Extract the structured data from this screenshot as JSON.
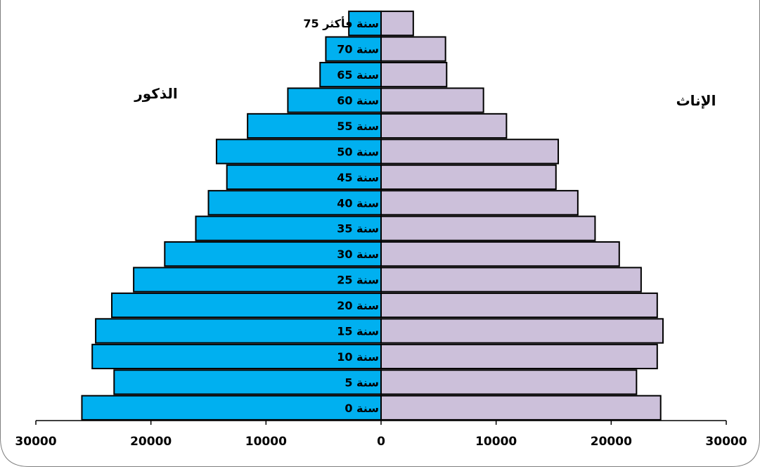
{
  "chart_data": {
    "type": "bar",
    "orientation": "horizontal",
    "subtype": "population-pyramid",
    "title": "",
    "categories": [
      "0 سنة",
      "5 سنة",
      "10 سنة",
      "15 سنة",
      "20 سنة",
      "25 سنة",
      "30 سنة",
      "35 سنة",
      "40 سنة",
      "45 سنة",
      "50 سنة",
      "55 سنة",
      "60 سنة",
      "65 سنة",
      "70 سنة",
      "75 سنة فأكثر"
    ],
    "series": [
      {
        "name": "الذكور",
        "side": "left",
        "color": "#00b0f0",
        "values": [
          26000,
          23200,
          25100,
          24800,
          23400,
          21500,
          18800,
          16100,
          15000,
          13400,
          14300,
          11600,
          8100,
          5300,
          4800,
          2800
        ]
      },
      {
        "name": "الإناث",
        "side": "right",
        "color": "#ccc0da",
        "values": [
          24300,
          22200,
          24000,
          24500,
          24000,
          22600,
          20700,
          18600,
          17100,
          15200,
          15400,
          10900,
          8900,
          5700,
          5600,
          2800
        ]
      }
    ],
    "xlim": [
      -30000,
      30000
    ],
    "xticks": [
      "30000",
      "20000",
      "10000",
      "0",
      "10000",
      "20000",
      "30000"
    ],
    "grid": false,
    "legend": "none"
  },
  "labels": {
    "left": "الذكور",
    "right": "الإناث"
  }
}
